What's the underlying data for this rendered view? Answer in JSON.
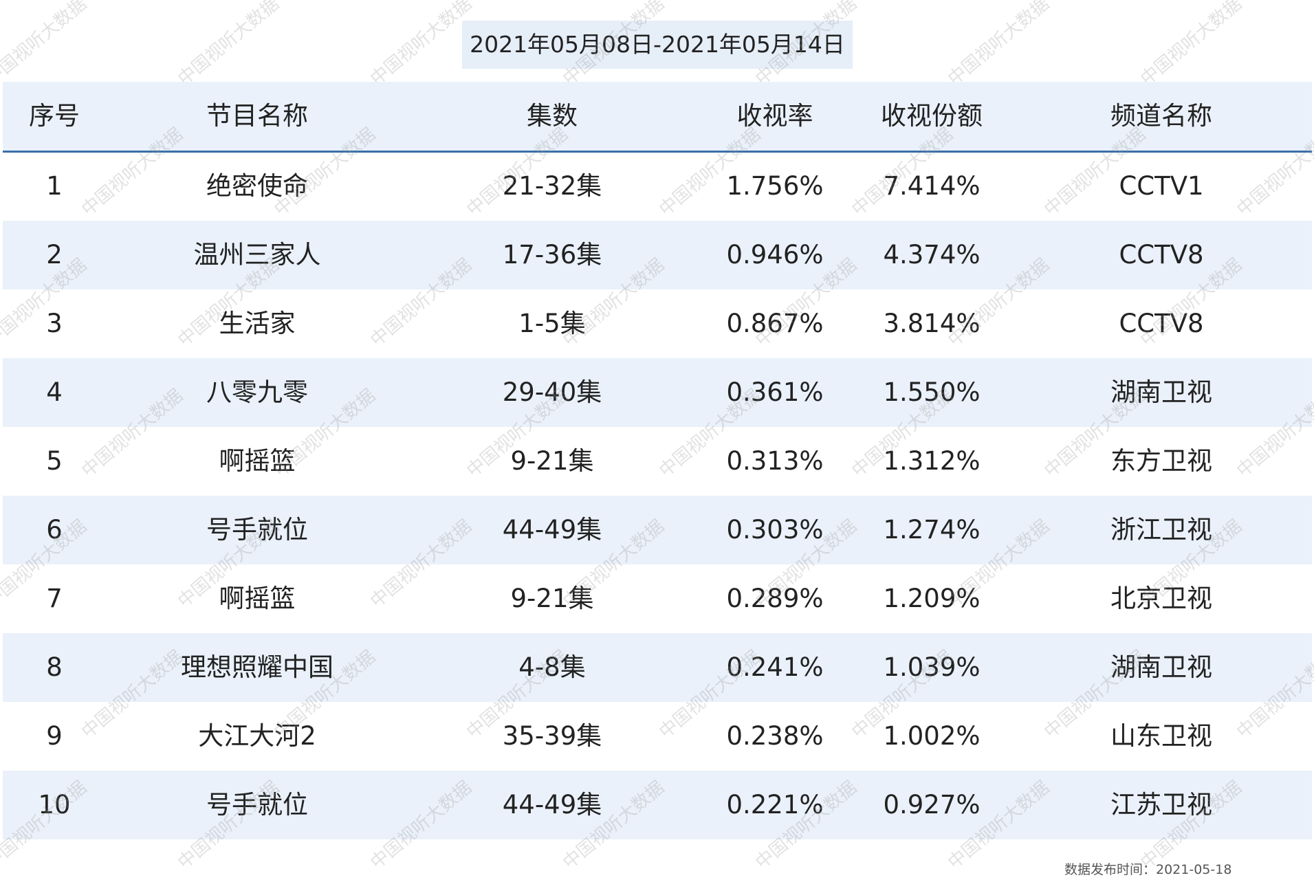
{
  "title": "2021年05月08日-2021年05月14日",
  "table": {
    "headers": [
      "序号",
      "节目名称",
      "集数",
      "收视率",
      "收视份额",
      "频道名称"
    ],
    "rows": [
      [
        "1",
        "绝密使命",
        "21-32集",
        "1.756%",
        "7.414%",
        "CCTV1"
      ],
      [
        "2",
        "温州三家人",
        "17-36集",
        "0.946%",
        "4.374%",
        "CCTV8"
      ],
      [
        "3",
        "生活家",
        "1-5集",
        "0.867%",
        "3.814%",
        "CCTV8"
      ],
      [
        "4",
        "八零九零",
        "29-40集",
        "0.361%",
        "1.550%",
        "湖南卫视"
      ],
      [
        "5",
        "啊摇篮",
        "9-21集",
        "0.313%",
        "1.312%",
        "东方卫视"
      ],
      [
        "6",
        "号手就位",
        "44-49集",
        "0.303%",
        "1.274%",
        "浙江卫视"
      ],
      [
        "7",
        "啊摇篮",
        "9-21集",
        "0.289%",
        "1.209%",
        "北京卫视"
      ],
      [
        "8",
        "理想照耀中国",
        "4-8集",
        "0.241%",
        "1.039%",
        "湖南卫视"
      ],
      [
        "9",
        "大江大河2",
        "35-39集",
        "0.238%",
        "1.002%",
        "山东卫视"
      ],
      [
        "10",
        "号手就位",
        "44-49集",
        "0.221%",
        "0.927%",
        "江苏卫视"
      ]
    ]
  },
  "footer": "数据发布时间：2021-05-18",
  "watermark": "中国视听大数据"
}
